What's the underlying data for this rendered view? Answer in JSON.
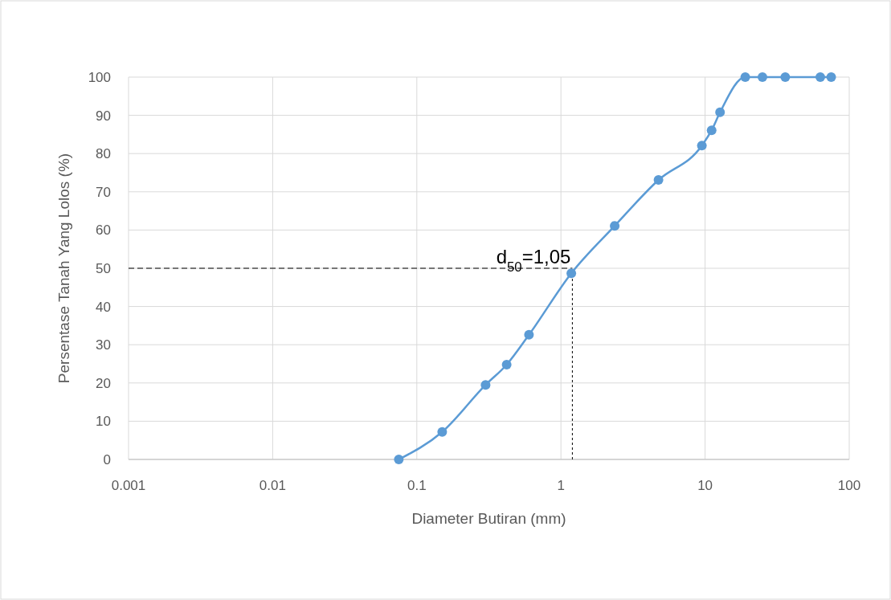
{
  "chart_data": {
    "type": "line",
    "xlabel": "Diameter Butiran (mm)",
    "ylabel": "Persentase Tanah Yang Lolos (%)",
    "log": "x",
    "xlim": [
      0.001,
      100
    ],
    "xticks": [
      0.001,
      0.01,
      0.1,
      1,
      10,
      100
    ],
    "ylim": [
      0,
      100
    ],
    "yticks": [
      0,
      10,
      20,
      30,
      40,
      50,
      60,
      70,
      80,
      90,
      100
    ],
    "grid": true,
    "marker": "circle",
    "line_style": "solid",
    "series": [
      {
        "color": "#5b9bd5",
        "x": [
          0.075,
          0.15,
          0.3,
          0.42,
          0.6,
          1.18,
          2.36,
          4.75,
          9.5,
          11.1,
          12.7,
          19,
          25,
          36,
          63,
          75
        ],
        "values": [
          0,
          7.2,
          19.5,
          24.8,
          32.6,
          48.7,
          61.1,
          73.1,
          82.1,
          86.1,
          90.8,
          100,
          100,
          100,
          100,
          100
        ]
      }
    ],
    "ref_lines": [
      {
        "axis": "y",
        "value": 50,
        "color": "#000000",
        "line_style": "dashed"
      },
      {
        "axis": "x",
        "value": 1.2,
        "color": "#000000",
        "line_style": "dotted"
      }
    ],
    "annotations": [
      {
        "text": "d$_{50}$=1,05",
        "x": 1.2,
        "y": 50
      }
    ]
  }
}
